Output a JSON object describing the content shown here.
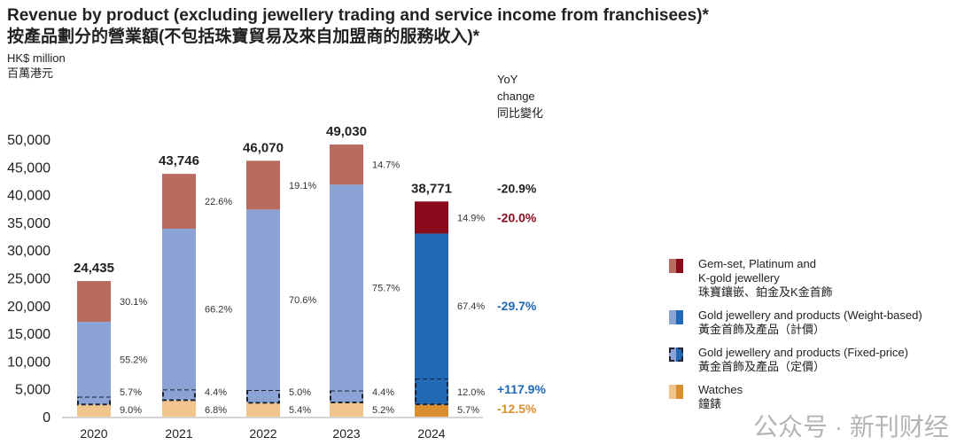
{
  "chart_data": {
    "type": "bar",
    "stacked": true,
    "title": "Revenue by product (excluding jewellery trading and service income from franchisees)*",
    "title_zh": "按產品劃分的營業額(不包括珠寶貿易及來自加盟商的服務收入)*",
    "ylabel": "HK$ million",
    "ylabel_zh": "百萬港元",
    "ylim": [
      0,
      50000
    ],
    "yticks": [
      "0",
      "5,000",
      "10,000",
      "15,000",
      "20,000",
      "25,000",
      "30,000",
      "35,000",
      "40,000",
      "45,000",
      "50,000"
    ],
    "categories": [
      "2020",
      "2021",
      "2022",
      "2023",
      "2024"
    ],
    "totals": [
      "24,435",
      "43,746",
      "46,070",
      "49,030",
      "38,771"
    ],
    "total_values": [
      24435,
      43746,
      46070,
      49030,
      38771
    ],
    "series": [
      {
        "name": "Watches",
        "name_zh": "鐘錶",
        "share_labels": [
          "9.0%",
          "6.8%",
          "5.4%",
          "5.2%",
          "5.7%"
        ],
        "share": [
          9.0,
          6.8,
          5.4,
          5.2,
          5.7
        ],
        "colors": [
          "#f0c48c",
          "#d98f2e"
        ],
        "yoy": "-12.5%",
        "yoy_color": "#d98f2e"
      },
      {
        "name": "Gold jewellery and products (Fixed-price)",
        "name_zh": "黃金首飾及產品（定價）",
        "share_labels": [
          "5.7%",
          "4.4%",
          "5.0%",
          "4.4%",
          "12.0%"
        ],
        "share": [
          5.7,
          4.4,
          5.0,
          4.4,
          12.0
        ],
        "colors": [
          "#8ba3d4",
          "#2169b6"
        ],
        "dashed": true,
        "yoy": "+117.9%",
        "yoy_color": "#2169b6"
      },
      {
        "name": "Gold jewellery and products (Weight-based)",
        "name_zh": "黃金首飾及產品（計價）",
        "share_labels": [
          "55.2%",
          "66.2%",
          "70.6%",
          "75.7%",
          "67.4%"
        ],
        "share": [
          55.2,
          66.2,
          70.6,
          75.7,
          67.4
        ],
        "colors": [
          "#8ba3d4",
          "#2169b6"
        ],
        "yoy": "-29.7%",
        "yoy_color": "#2169b6"
      },
      {
        "name": "Gem-set, Platinum and K-gold jewellery",
        "name_zh": "珠寶鑲嵌、鉑金及K金首飾",
        "share_labels": [
          "30.1%",
          "22.6%",
          "19.1%",
          "14.7%",
          "14.9%"
        ],
        "share": [
          30.1,
          22.6,
          19.1,
          14.7,
          14.9
        ],
        "colors": [
          "#b86b5e",
          "#8a0a1b"
        ],
        "yoy": "-20.0%",
        "yoy_color": "#8a0a1b"
      }
    ],
    "yoy_header": [
      "YoY",
      "change",
      "同比變化"
    ],
    "yoy_total": "-20.9%",
    "legend_position": "right",
    "grid": false
  },
  "legend": [
    {
      "lines": [
        "Gem-set, Platinum and",
        "K-gold jewellery",
        "珠寶鑲嵌、鉑金及K金首飾"
      ]
    },
    {
      "lines": [
        "Gold jewellery and products (Weight-based)",
        "黃金首飾及產品（計價）"
      ]
    },
    {
      "lines": [
        "Gold jewellery and products (Fixed-price)",
        "黃金首飾及產品（定價）"
      ]
    },
    {
      "lines": [
        "Watches",
        "鐘錶"
      ]
    }
  ],
  "watermark": "公众号 · 新刊财经"
}
